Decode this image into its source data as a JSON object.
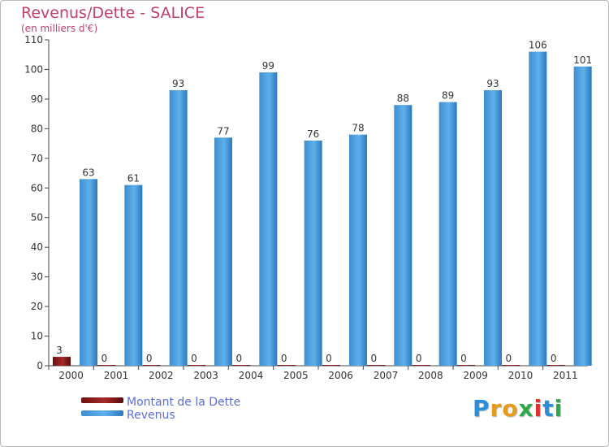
{
  "header": {
    "title": "Revenus/Dette - SALICE",
    "subtitle": "(en milliers d'€)"
  },
  "logo": {
    "text": "Proxiti",
    "letters": [
      "P",
      "r",
      "o",
      "x",
      "i",
      "t",
      "i"
    ],
    "colors": [
      "#2a8fd8",
      "#e89a1a",
      "#e89a1a",
      "#2fa84a",
      "#e03030",
      "#2a8fd8",
      "#2fa84a"
    ]
  },
  "chart_data": {
    "type": "bar",
    "title": "Revenus/Dette - SALICE",
    "ylabel": "(en milliers d'€)",
    "xlabel": "",
    "categories": [
      "2000",
      "2001",
      "2002",
      "2003",
      "2004",
      "2005",
      "2006",
      "2007",
      "2008",
      "2009",
      "2010",
      "2011"
    ],
    "ylim": [
      0,
      110
    ],
    "yticks": [
      0,
      10,
      20,
      30,
      40,
      50,
      60,
      70,
      80,
      90,
      100,
      110
    ],
    "grid": false,
    "legend_position": "bottom-left",
    "series": [
      {
        "name": "Montant de la Dette",
        "color": "#8b1a1a",
        "values": [
          3,
          0,
          0,
          0,
          0,
          0,
          0,
          0,
          0,
          0,
          0,
          0
        ]
      },
      {
        "name": "Revenus",
        "color": "#4da3e0",
        "values": [
          63,
          61,
          93,
          77,
          99,
          76,
          78,
          88,
          89,
          93,
          106,
          101
        ]
      }
    ]
  }
}
